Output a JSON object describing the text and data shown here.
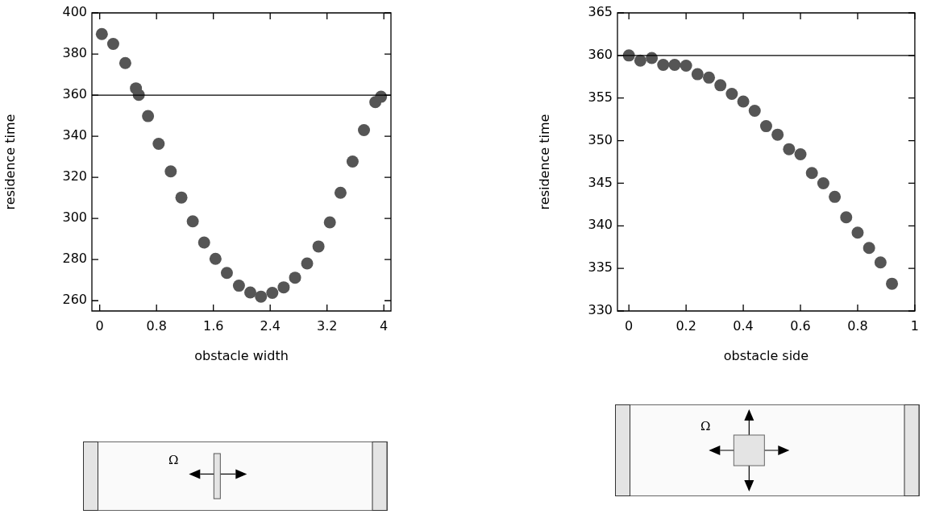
{
  "chart_data": [
    {
      "type": "scatter",
      "xlabel": "obstacle width",
      "ylabel": "residence time",
      "xlim": [
        -0.11,
        4.1
      ],
      "ylim": [
        255,
        400
      ],
      "xticks": [
        0,
        0.8,
        1.6,
        2.4,
        3.2,
        4
      ],
      "yticks": [
        260,
        280,
        300,
        320,
        340,
        360,
        380,
        400
      ],
      "marker": "circle",
      "grid": false,
      "legend": false,
      "ref_lines": [
        {
          "axis": "y",
          "value": 360,
          "color": "#000000"
        }
      ],
      "annotations": [
        "Ω"
      ],
      "series": [
        {
          "color": "#555555",
          "x": [
            0.03,
            0.19,
            0.36,
            0.51,
            0.55,
            0.68,
            0.83,
            1.0,
            1.15,
            1.31,
            1.47,
            1.63,
            1.79,
            1.96,
            2.12,
            2.27,
            2.43,
            2.59,
            2.75,
            2.92,
            3.08,
            3.24,
            3.39,
            3.56,
            3.72,
            3.88,
            3.96
          ],
          "values": [
            389.7,
            384.9,
            375.6,
            363.3,
            360.1,
            349.8,
            336.3,
            322.9,
            310.2,
            298.6,
            288.3,
            280.4,
            273.5,
            267.3,
            264.0,
            262.0,
            263.8,
            266.5,
            271.2,
            278.1,
            286.4,
            298.1,
            312.5,
            327.7,
            343.0,
            356.6,
            359.2
          ]
        }
      ]
    },
    {
      "type": "scatter",
      "xlabel": "obstacle side",
      "ylabel": "residence time",
      "xlim": [
        -0.04,
        1
      ],
      "ylim": [
        330,
        365
      ],
      "xticks": [
        0,
        0.2,
        0.4,
        0.6,
        0.8,
        1
      ],
      "yticks": [
        330,
        335,
        340,
        345,
        350,
        355,
        360,
        365
      ],
      "marker": "circle",
      "grid": false,
      "legend": false,
      "ref_lines": [
        {
          "axis": "y",
          "value": 360,
          "color": "#000000"
        }
      ],
      "annotations": [
        "Ω"
      ],
      "series": [
        {
          "color": "#555555",
          "x": [
            0,
            0.04,
            0.08,
            0.12,
            0.16,
            0.2,
            0.24,
            0.28,
            0.32,
            0.36,
            0.4,
            0.44,
            0.48,
            0.52,
            0.56,
            0.6,
            0.64,
            0.68,
            0.72,
            0.76,
            0.8,
            0.84,
            0.88,
            0.92
          ],
          "values": [
            360.0,
            359.4,
            359.7,
            358.9,
            358.9,
            358.8,
            357.8,
            357.4,
            356.5,
            355.5,
            354.6,
            353.5,
            351.7,
            350.7,
            349.0,
            348.4,
            346.2,
            345.0,
            343.4,
            341.0,
            339.2,
            337.4,
            335.7,
            333.2
          ]
        }
      ]
    }
  ]
}
